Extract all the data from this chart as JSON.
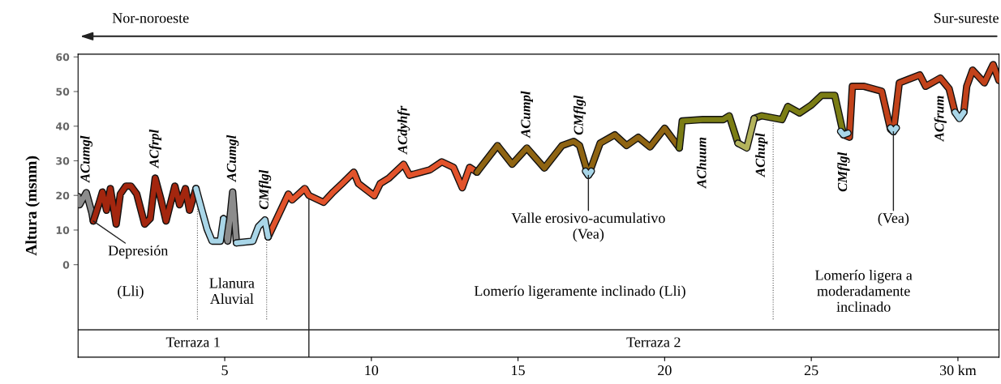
{
  "chart_data": {
    "type": "line",
    "ylabel": "Altura (msnm)",
    "xlim": [
      0,
      31.4
    ],
    "ylim": [
      -26.7,
      60.8
    ],
    "xticks": [
      5,
      10,
      15,
      20,
      25,
      {
        "value": 30,
        "label": "30 km"
      }
    ],
    "yticks": [
      0,
      10,
      20,
      30,
      40,
      50,
      60
    ],
    "series": [
      {
        "color": "#8c8c8c",
        "x": [
          0,
          0.05,
          0.28,
          0.47,
          0.52,
          3.0,
          4.96,
          5.1,
          5.27,
          5.4
        ],
        "values": [
          19.7,
          17.3,
          20.8,
          15,
          12.6,
          null,
          13.3,
          6.8,
          21,
          6.3
        ]
      },
      {
        "color": "#a3260e",
        "x": [
          0.52,
          0.7,
          0.83,
          0.97,
          1.1,
          1.3,
          1.44,
          1.63,
          1.8,
          2.0,
          2.27,
          2.46,
          2.63,
          2.83,
          3.0,
          3.3,
          3.46,
          3.66,
          3.8,
          4.02
        ],
        "values": [
          12.6,
          17.3,
          21,
          15.7,
          22,
          11.7,
          20.4,
          22.7,
          22.7,
          20.4,
          11.7,
          13.3,
          25,
          18.7,
          12.6,
          22.7,
          17.3,
          22,
          15.7,
          22
        ]
      },
      {
        "color": "#e2532b",
        "x": [
          6.48,
          7.17,
          7.3,
          7.73,
          7.87,
          8.37,
          8.7,
          9.0,
          9.4,
          9.56,
          10.1,
          10.3,
          10.6,
          11.1,
          11.3,
          12,
          12.4,
          12.8,
          13.1,
          13.35,
          13.6
        ],
        "values": [
          8,
          20.4,
          18.7,
          22,
          20,
          18,
          21,
          23.4,
          26.7,
          23.4,
          19.9,
          23.4,
          25,
          29,
          25.8,
          27.4,
          29.7,
          28.1,
          22.2,
          28.1,
          26.7
        ]
      },
      {
        "color": "#8f6412",
        "x": [
          13.6,
          14.3,
          14.8,
          15.3,
          15.9,
          16.5,
          16.9,
          17.1,
          17.4,
          17.8,
          18.3,
          18.7,
          19.1,
          19.5,
          20.0,
          20.5
        ],
        "values": [
          26.7,
          34.4,
          29,
          33.7,
          27.9,
          34.4,
          35.6,
          34.4,
          25.8,
          35.1,
          37.5,
          34.4,
          36.8,
          34,
          39.4,
          33.7
        ]
      },
      {
        "color": "#7b7d14",
        "x": [
          20.5,
          20.6,
          21.3,
          22.0,
          22.2,
          22.5,
          22.8,
          23.05,
          23.3,
          24,
          24.2,
          24.6,
          25,
          25.35,
          25.8,
          26.1
        ],
        "values": [
          33.7,
          41.5,
          41.9,
          41.9,
          43,
          35.1,
          null,
          42.2,
          43,
          41.9,
          45.7,
          43.8,
          46.1,
          48.9,
          48.9,
          37.5
        ]
      },
      {
        "color": "#b3b35c",
        "x": [
          22.5,
          22.8,
          23.05
        ],
        "values": [
          35.1,
          33.7,
          42.2
        ]
      },
      {
        "color": "#c2421a",
        "x": [
          26.1,
          26.3,
          26.4,
          26.8,
          27.4,
          27.7,
          27.8,
          28.0,
          28.7,
          28.9,
          29.4,
          29.7,
          29.9,
          30.05,
          30.2,
          30.3,
          30.5,
          30.9,
          31.2,
          31.4
        ],
        "values": [
          37.5,
          36.8,
          51.5,
          51.5,
          50.1,
          39.1,
          38.4,
          52.5,
          54.8,
          51.5,
          53.9,
          50.8,
          44,
          null,
          44,
          51.5,
          56.2,
          52.5,
          57.8,
          53.2
        ]
      },
      {
        "color": "#a9d6e8",
        "x": [
          4.02,
          4.2,
          4.4,
          4.57,
          4.85,
          4.96,
          5.2,
          5.4,
          5.96,
          6.15,
          6.37,
          6.48,
          12,
          17.3,
          17.4,
          17.5,
          22,
          26.0,
          26.1,
          26.25,
          27,
          27.7,
          27.8,
          27.9,
          29,
          29.9,
          30.05,
          30.2
        ],
        "values": [
          22,
          16.4,
          10.3,
          6.8,
          6.8,
          13.3,
          null,
          6.3,
          6.8,
          11,
          12.9,
          8,
          null,
          27,
          25.8,
          27,
          null,
          38.5,
          37.5,
          38,
          null,
          39.5,
          38.4,
          39.5,
          null,
          44,
          42.2,
          44
        ]
      }
    ],
    "ref_lines": [
      {
        "axis": "x",
        "value": 4.07,
        "line_style": "dotted",
        "color": "#555555"
      },
      {
        "axis": "x",
        "value": 6.43,
        "line_style": "dotted",
        "color": "#555555"
      },
      {
        "axis": "x",
        "value": 7.87,
        "line_style": "solid",
        "color": "#222222"
      },
      {
        "axis": "x",
        "value": 23.7,
        "line_style": "dotted",
        "color": "#555555"
      },
      {
        "axis": "y",
        "value": -18.8,
        "line_style": "solid",
        "color": "#444444"
      }
    ],
    "annotations": [
      "Nor-noroeste",
      "Sur-sureste",
      "Terraza 1",
      "Terraza 2",
      "(Lli)",
      "Llanura\nAluvial",
      "Lomerío ligeramente inclinado (Lli)",
      "Lomerío ligera a\nmoderadamente\ninclinado",
      {
        "text": "Depresión",
        "x": 0.52,
        "y": 12.6
      },
      {
        "text": "Valle erosivo-acumulativo\n(Vea)",
        "x": 17.4,
        "y": 25.8
      },
      {
        "text": "(Vea)",
        "x": 27.8,
        "y": 38.4
      },
      {
        "text": "ACumgl",
        "x": 0.28,
        "y": 20.8
      },
      {
        "text": "ACfrpl",
        "x": 2.63,
        "y": 25
      },
      {
        "text": "ACumgl",
        "x": 5.27,
        "y": 21
      },
      {
        "text": "CMflgl",
        "x": 6.37,
        "y": 12.9
      },
      {
        "text": "ACdyhfr",
        "x": 11.1,
        "y": 29
      },
      {
        "text": "ACumpl",
        "x": 15.3,
        "y": 33.7
      },
      {
        "text": "CMflgl",
        "x": 17.1,
        "y": 34.4
      },
      {
        "text": "AChuum",
        "x": 21.3,
        "y": 41.9
      },
      {
        "text": "AChupl",
        "x": 23.3,
        "y": 43
      },
      {
        "text": "CMflgl",
        "x": 26.1,
        "y": 37.5
      },
      {
        "text": "ACfrum",
        "x": 29.4,
        "y": 53.9
      }
    ]
  }
}
